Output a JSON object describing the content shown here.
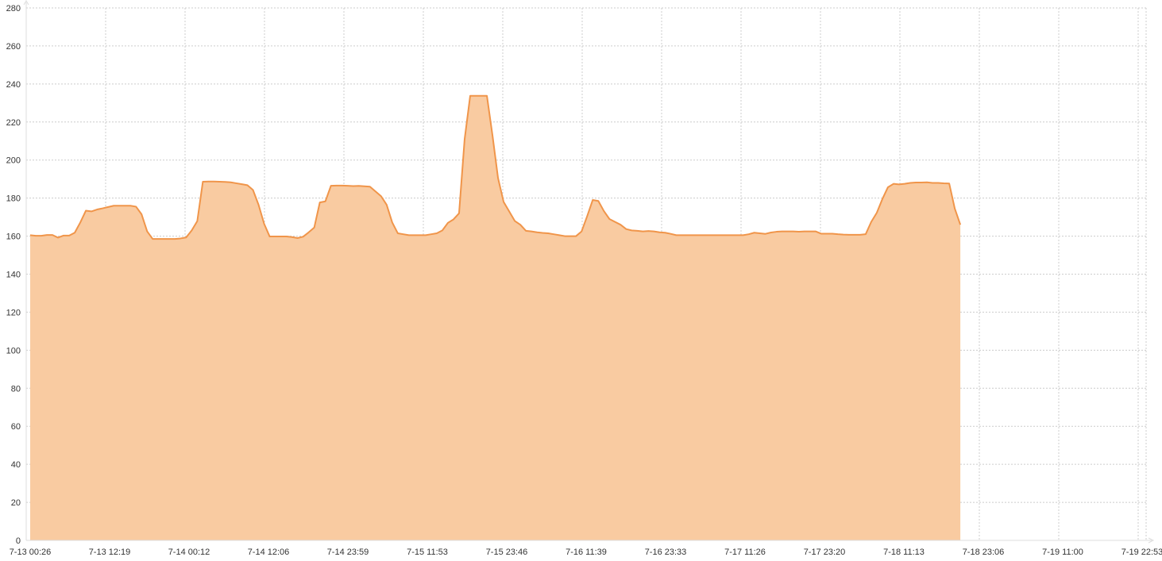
{
  "chart_data": {
    "type": "area",
    "title": "",
    "xlabel": "",
    "ylabel": "",
    "ylim": [
      0,
      280
    ],
    "y_ticks": [
      0,
      20,
      40,
      60,
      80,
      100,
      120,
      140,
      160,
      180,
      200,
      220,
      240,
      260,
      280
    ],
    "x_tick_labels": [
      "7-13 00:26",
      "7-13 12:19",
      "7-14 00:12",
      "7-14 12:06",
      "7-14 23:59",
      "7-15 11:53",
      "7-15 23:46",
      "7-16 11:39",
      "7-16 23:33",
      "7-17 11:26",
      "7-17 23:20",
      "7-18 11:13",
      "7-18 23:06",
      "7-19 11:00",
      "7-19 22:53"
    ],
    "grid": true,
    "legend": "none",
    "colors": {
      "line": "#f0954a",
      "fill": "#f9cba1"
    },
    "x_step_minutes": 50,
    "x_start": "7-13 00:26",
    "series": [
      {
        "values": [
          160.5,
          160.2,
          160.2,
          160.6,
          160.6,
          159.2,
          160.3,
          160.3,
          161.8,
          167.2,
          173.4,
          173.0,
          174.0,
          174.6,
          175.3,
          176.0,
          176.0,
          176.0,
          176.0,
          175.5,
          171.5,
          162.5,
          158.5,
          158.5,
          158.5,
          158.5,
          158.5,
          158.8,
          159.3,
          163.0,
          167.9,
          188.6,
          188.7,
          188.7,
          188.6,
          188.5,
          188.3,
          187.8,
          187.3,
          186.8,
          184.3,
          176.5,
          166.5,
          159.8,
          159.8,
          159.8,
          159.8,
          159.5,
          159.0,
          159.7,
          162.0,
          164.5,
          177.7,
          178.3,
          186.5,
          186.6,
          186.6,
          186.5,
          186.3,
          186.4,
          186.2,
          186.0,
          183.5,
          181.0,
          176.5,
          167.2,
          161.5,
          161.0,
          160.5,
          160.5,
          160.5,
          160.5,
          161.0,
          161.5,
          163.0,
          167.0,
          168.8,
          172.0,
          211.0,
          233.8,
          233.8,
          233.8,
          233.8,
          213.0,
          190.5,
          178.0,
          173.0,
          168.0,
          166.0,
          162.8,
          162.5,
          162.0,
          161.7,
          161.5,
          161.0,
          160.5,
          160.0,
          160.0,
          160.0,
          162.5,
          170.5,
          179.0,
          178.5,
          173.2,
          169.0,
          167.5,
          166.0,
          163.7,
          163.0,
          162.8,
          162.5,
          162.7,
          162.5,
          162.0,
          161.8,
          161.2,
          160.5,
          160.5,
          160.5,
          160.5,
          160.5,
          160.5,
          160.5,
          160.5,
          160.5,
          160.5,
          160.5,
          160.5,
          160.5,
          161.0,
          161.8,
          161.5,
          161.2,
          161.9,
          162.3,
          162.5,
          162.5,
          162.5,
          162.3,
          162.5,
          162.5,
          162.5,
          161.3,
          161.3,
          161.3,
          161.0,
          160.8,
          160.7,
          160.7,
          160.7,
          161.0,
          167.5,
          172.3,
          179.5,
          185.7,
          187.5,
          187.2,
          187.5,
          188.0,
          188.2,
          188.2,
          188.3,
          188.0,
          188.0,
          187.8,
          187.7,
          174.5,
          166.0
        ]
      }
    ]
  }
}
